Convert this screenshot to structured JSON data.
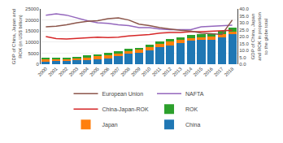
{
  "chart_data": {
    "type": "bar",
    "stacked": true,
    "categories": [
      "2000",
      "2001",
      "2002",
      "2003",
      "2004",
      "2005",
      "2006",
      "2007",
      "2008",
      "2009",
      "2010",
      "2011",
      "2012",
      "2013",
      "2014",
      "2015",
      "2016",
      "2017",
      "2018"
    ],
    "series": [
      {
        "name": "China",
        "type": "bar",
        "values": [
          1211,
          1340,
          1471,
          1661,
          1955,
          2286,
          2752,
          3552,
          4598,
          5101,
          6087,
          7552,
          8561,
          9607,
          10482,
          11065,
          11200,
          12238,
          13608
        ]
      },
      {
        "name": "Japan",
        "type": "bar",
        "values": [
          1200,
          1100,
          1050,
          1150,
          1250,
          1300,
          1200,
          1150,
          1300,
          1350,
          1500,
          1600,
          1600,
          1350,
          1250,
          1100,
          1250,
          1200,
          1280
        ]
      },
      {
        "name": "ROK",
        "type": "bar",
        "values": [
          576,
          504,
          576,
          644,
          722,
          898,
          1053,
          1172,
          1002,
          901,
          1094,
          1202,
          1223,
          1306,
          1411,
          1382,
          1411,
          1531,
          1619
        ]
      },
      {
        "name": "China-Japan-ROK",
        "type": "line",
        "axis": "y2",
        "values": [
          20.0,
          18.5,
          18.2,
          18.5,
          19.0,
          19.5,
          19.2,
          19.5,
          20.5,
          21.0,
          21.5,
          22.5,
          23.0,
          23.0,
          23.5,
          23.5,
          23.8,
          24.0,
          24.5
        ]
      },
      {
        "name": "NAFTA",
        "type": "line",
        "axis": "y2",
        "values": [
          35.5,
          36.5,
          35.5,
          33.5,
          31.5,
          30.0,
          29.5,
          28.5,
          28.0,
          26.5,
          26.5,
          25.5,
          25.0,
          25.0,
          25.0,
          27.0,
          27.5,
          27.8,
          28.2
        ]
      },
      {
        "name": "European Union",
        "type": "line",
        "axis": "y2",
        "values": [
          27.0,
          27.5,
          28.5,
          30.0,
          31.0,
          31.5,
          33.0,
          33.5,
          32.0,
          29.0,
          28.0,
          26.5,
          25.5,
          24.5,
          24.0,
          22.5,
          22.0,
          21.5,
          32.0
        ]
      }
    ],
    "ylabel": "GDP of China, Japan and ROK (in US$ billion)",
    "y2label": "GDP of China, Japan and ROK in proportion to the globe total",
    "ylim": [
      0,
      25000
    ],
    "yticks": [
      0,
      5000,
      10000,
      15000,
      20000,
      25000
    ],
    "y2lim": [
      0.0,
      40.0
    ],
    "y2ticks": [
      {
        "value": 0,
        "label": "0.0"
      },
      {
        "value": 5,
        "label": "5.0"
      },
      {
        "value": 10,
        "label": "10.0"
      },
      {
        "value": 15,
        "label": "15.0"
      },
      {
        "value": 20,
        "label": "20.0"
      },
      {
        "value": 25,
        "label": "25.0"
      },
      {
        "value": 30,
        "label": "30.0"
      },
      {
        "value": 35,
        "label": "35.0"
      },
      {
        "value": 40,
        "label": "40.0"
      }
    ],
    "grid": true,
    "legend": "bottom"
  }
}
